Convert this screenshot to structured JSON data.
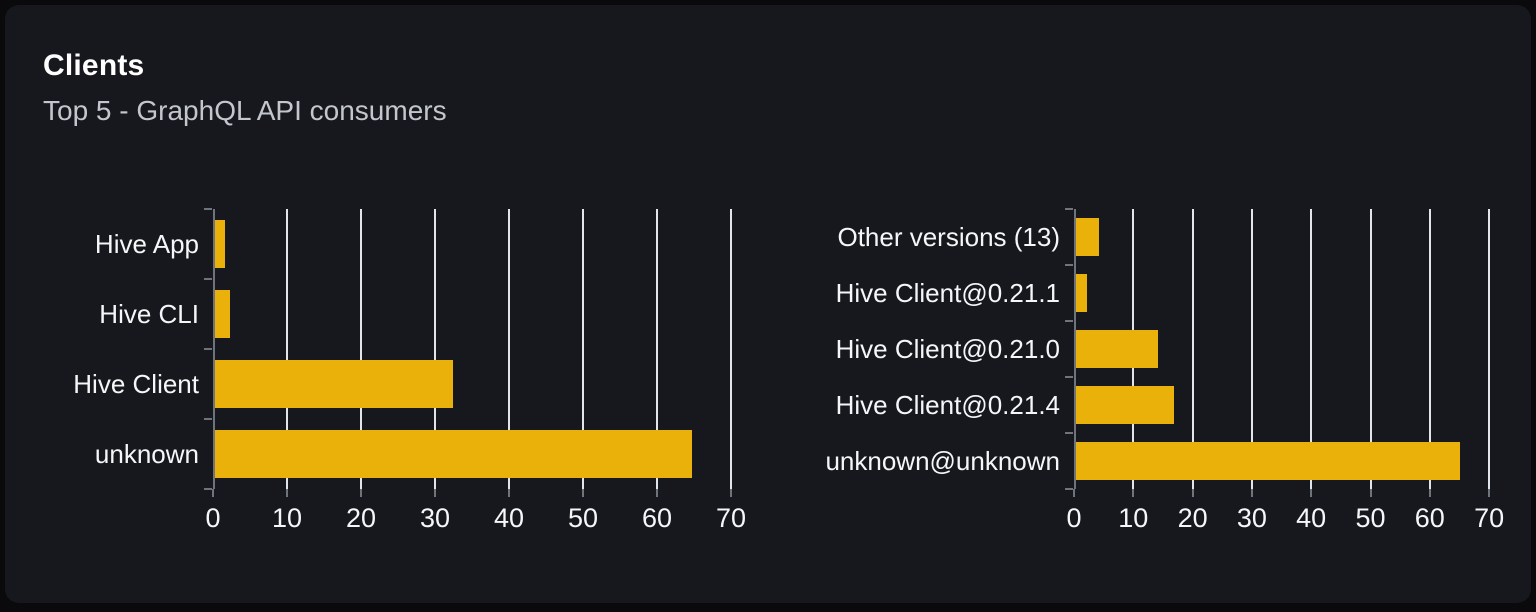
{
  "header": {
    "title": "Clients",
    "subtitle": "Top 5 - GraphQL API consumers"
  },
  "colors": {
    "bar": "#e9b10a",
    "gridline": "#e2e5ec",
    "axis": "#6f737b",
    "card_background": "#16181e",
    "page_background": "#0a0a0c",
    "title_text": "#ffffff",
    "subtitle_text": "#c3c7cd",
    "label_text": "#f5f6f7"
  },
  "chart_data": [
    {
      "type": "bar",
      "orientation": "horizontal",
      "title": "",
      "categories": [
        "Hive App",
        "Hive CLI",
        "Hive Client",
        "unknown"
      ],
      "values": [
        1.4,
        2,
        32.2,
        64.4
      ],
      "xlabel": "",
      "ylabel": "",
      "xlim": [
        0,
        70
      ],
      "xticks": [
        0,
        10,
        20,
        30,
        40,
        50,
        60,
        70
      ],
      "grid": true,
      "legend": false,
      "bar_color": "#e9b10a"
    },
    {
      "type": "bar",
      "orientation": "horizontal",
      "title": "",
      "categories": [
        "Other versions (13)",
        "Hive Client@0.21.1",
        "Hive Client@0.21.0",
        "Hive Client@0.21.4",
        "unknown@unknown"
      ],
      "values": [
        3.9,
        1.9,
        13.9,
        16.5,
        64.7
      ],
      "xlabel": "",
      "ylabel": "",
      "xlim": [
        0,
        70
      ],
      "xticks": [
        0,
        10,
        20,
        30,
        40,
        50,
        60,
        70
      ],
      "grid": true,
      "legend": false,
      "bar_color": "#e9b10a"
    }
  ]
}
